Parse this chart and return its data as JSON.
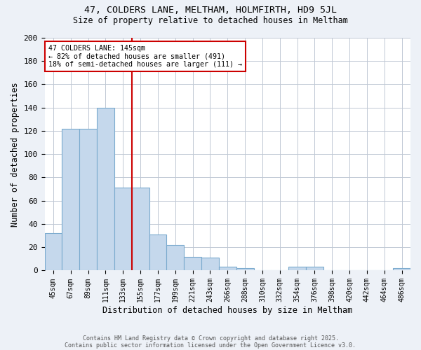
{
  "title1": "47, COLDERS LANE, MELTHAM, HOLMFIRTH, HD9 5JL",
  "title2": "Size of property relative to detached houses in Meltham",
  "xlabel": "Distribution of detached houses by size in Meltham",
  "ylabel": "Number of detached properties",
  "categories": [
    "45sqm",
    "67sqm",
    "89sqm",
    "111sqm",
    "133sqm",
    "155sqm",
    "177sqm",
    "199sqm",
    "221sqm",
    "243sqm",
    "266sqm",
    "288sqm",
    "310sqm",
    "332sqm",
    "354sqm",
    "376sqm",
    "398sqm",
    "420sqm",
    "442sqm",
    "464sqm",
    "486sqm"
  ],
  "values": [
    32,
    122,
    122,
    140,
    71,
    71,
    31,
    22,
    12,
    11,
    3,
    2,
    0,
    0,
    3,
    3,
    0,
    0,
    0,
    0,
    2
  ],
  "bar_color": "#c5d8ec",
  "bar_edge_color": "#7aaace",
  "vline_x": 4.5,
  "vline_color": "#cc0000",
  "annotation_text": "47 COLDERS LANE: 145sqm\n← 82% of detached houses are smaller (491)\n18% of semi-detached houses are larger (111) →",
  "annotation_box_color": "white",
  "annotation_box_edge_color": "#cc0000",
  "ylim": [
    0,
    200
  ],
  "yticks": [
    0,
    20,
    40,
    60,
    80,
    100,
    120,
    140,
    160,
    180,
    200
  ],
  "footnote1": "Contains HM Land Registry data © Crown copyright and database right 2025.",
  "footnote2": "Contains public sector information licensed under the Open Government Licence v3.0.",
  "bg_color": "#edf1f7",
  "plot_bg_color": "white",
  "grid_color": "#c0c8d4"
}
